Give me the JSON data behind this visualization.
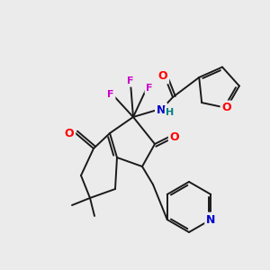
{
  "background_color": "#ebebeb",
  "bond_color": "#1a1a1a",
  "atom_colors": {
    "O": "#ff0000",
    "N": "#0000cc",
    "F": "#cc00cc",
    "H": "#008080",
    "C": "#1a1a1a"
  },
  "figsize": [
    3.0,
    3.0
  ],
  "dpi": 100
}
